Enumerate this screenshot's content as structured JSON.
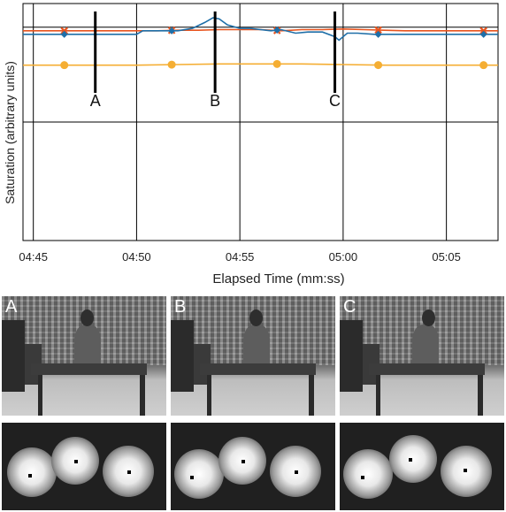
{
  "chart_data": {
    "type": "line",
    "title": "",
    "xlabel": "Elapsed Time (mm:ss)",
    "ylabel": "Saturation (arbitrary units)",
    "xlim": [
      284.5,
      307.5
    ],
    "ylim": [
      0,
      2
    ],
    "grid": true,
    "x_ticks": [
      {
        "value": 285,
        "label": "04:45"
      },
      {
        "value": 290,
        "label": "04:50"
      },
      {
        "value": 295,
        "label": "04:55"
      },
      {
        "value": 300,
        "label": "05:00"
      },
      {
        "value": 305,
        "label": "05:05"
      }
    ],
    "series": [
      {
        "color": "#e8541e",
        "marker": "x",
        "x": [
          284.5,
          285.5,
          287,
          288.5,
          290,
          291,
          292,
          293,
          294,
          295,
          296,
          297,
          297.5,
          298,
          299,
          300,
          301,
          302,
          303,
          304,
          305,
          306,
          307.5
        ],
        "y": [
          1.77,
          1.77,
          1.77,
          1.77,
          1.77,
          1.77,
          1.775,
          1.775,
          1.78,
          1.78,
          1.78,
          1.77,
          1.775,
          1.78,
          1.78,
          1.785,
          1.78,
          1.775,
          1.77,
          1.77,
          1.77,
          1.77,
          1.77
        ],
        "marker_x": [
          286.5,
          291.7,
          296.8,
          301.7,
          306.8
        ]
      },
      {
        "color": "#1f6fa8",
        "marker": "diamond",
        "x": [
          284.5,
          285.5,
          287,
          288.5,
          290,
          290.3,
          291,
          292,
          292.7,
          293.3,
          293.7,
          294.0,
          294.4,
          295,
          295.5,
          296,
          296.5,
          297,
          297.7,
          298.3,
          299,
          299.6,
          299.8,
          300.2,
          300.7,
          301.5,
          302.5,
          304,
          305.5,
          307.5
        ],
        "y": [
          1.74,
          1.74,
          1.74,
          1.74,
          1.74,
          1.77,
          1.77,
          1.77,
          1.79,
          1.84,
          1.88,
          1.87,
          1.82,
          1.79,
          1.79,
          1.78,
          1.77,
          1.78,
          1.75,
          1.76,
          1.76,
          1.72,
          1.69,
          1.75,
          1.75,
          1.74,
          1.74,
          1.74,
          1.74,
          1.74
        ],
        "marker_x": [
          286.5,
          291.7,
          296.8,
          301.7,
          306.8
        ]
      },
      {
        "color": "#f5ae33",
        "marker": "circle",
        "x": [
          284.5,
          286,
          288,
          290,
          292,
          294,
          296,
          298,
          300,
          302,
          304,
          306,
          307.5
        ],
        "y": [
          1.48,
          1.48,
          1.48,
          1.48,
          1.485,
          1.49,
          1.49,
          1.49,
          1.485,
          1.48,
          1.48,
          1.48,
          1.48
        ],
        "marker_x": [
          286.5,
          291.7,
          296.8,
          301.7,
          306.8
        ]
      }
    ],
    "annotations": [
      {
        "label": "A",
        "x": 288.0
      },
      {
        "label": "B",
        "x": 293.8
      },
      {
        "label": "C",
        "x": 299.6
      }
    ]
  },
  "panels": {
    "top": [
      "A",
      "B",
      "C"
    ]
  }
}
